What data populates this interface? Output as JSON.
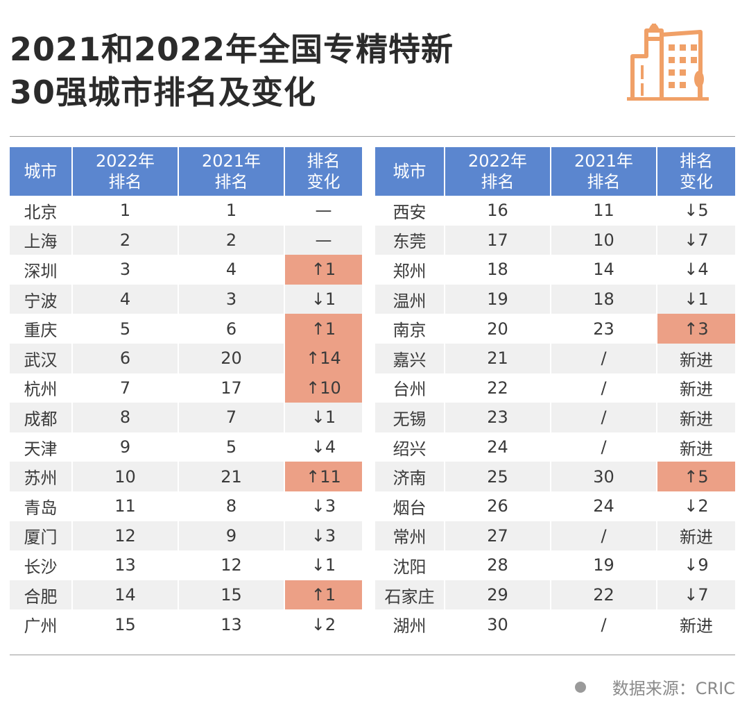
{
  "title": {
    "line1": "2021和2022年全国专精特新",
    "line2": "30强城市排名及变化"
  },
  "source": "数据来源：CRIC",
  "colors": {
    "header_bg": "#5b86cf",
    "highlight": "#eca086",
    "stripe": "#f0f0f0",
    "icon": "#f0a067"
  },
  "icon": "city-buildings-icon",
  "chart_data": {
    "type": "table",
    "columns": [
      "城市",
      "2022年排名",
      "2021年排名",
      "排名变化"
    ],
    "header_lines": {
      "city": "城市",
      "y2022": [
        "2022年",
        "排名"
      ],
      "y2021": [
        "2021年",
        "排名"
      ],
      "change": [
        "排名",
        "变化"
      ]
    },
    "rows": [
      {
        "city": "北京",
        "rank_2022": "1",
        "rank_2021": "1",
        "change": "—",
        "highlight": false
      },
      {
        "city": "上海",
        "rank_2022": "2",
        "rank_2021": "2",
        "change": "—",
        "highlight": false
      },
      {
        "city": "深圳",
        "rank_2022": "3",
        "rank_2021": "4",
        "change": "↑1",
        "highlight": true
      },
      {
        "city": "宁波",
        "rank_2022": "4",
        "rank_2021": "3",
        "change": "↓1",
        "highlight": false
      },
      {
        "city": "重庆",
        "rank_2022": "5",
        "rank_2021": "6",
        "change": "↑1",
        "highlight": true
      },
      {
        "city": "武汉",
        "rank_2022": "6",
        "rank_2021": "20",
        "change": "↑14",
        "highlight": true
      },
      {
        "city": "杭州",
        "rank_2022": "7",
        "rank_2021": "17",
        "change": "↑10",
        "highlight": true
      },
      {
        "city": "成都",
        "rank_2022": "8",
        "rank_2021": "7",
        "change": "↓1",
        "highlight": false
      },
      {
        "city": "天津",
        "rank_2022": "9",
        "rank_2021": "5",
        "change": "↓4",
        "highlight": false
      },
      {
        "city": "苏州",
        "rank_2022": "10",
        "rank_2021": "21",
        "change": "↑11",
        "highlight": true
      },
      {
        "city": "青岛",
        "rank_2022": "11",
        "rank_2021": "8",
        "change": "↓3",
        "highlight": false
      },
      {
        "city": "厦门",
        "rank_2022": "12",
        "rank_2021": "9",
        "change": "↓3",
        "highlight": false
      },
      {
        "city": "长沙",
        "rank_2022": "13",
        "rank_2021": "12",
        "change": "↓1",
        "highlight": false
      },
      {
        "city": "合肥",
        "rank_2022": "14",
        "rank_2021": "15",
        "change": "↑1",
        "highlight": true
      },
      {
        "city": "广州",
        "rank_2022": "15",
        "rank_2021": "13",
        "change": "↓2",
        "highlight": false
      },
      {
        "city": "西安",
        "rank_2022": "16",
        "rank_2021": "11",
        "change": "↓5",
        "highlight": false
      },
      {
        "city": "东莞",
        "rank_2022": "17",
        "rank_2021": "10",
        "change": "↓7",
        "highlight": false
      },
      {
        "city": "郑州",
        "rank_2022": "18",
        "rank_2021": "14",
        "change": "↓4",
        "highlight": false
      },
      {
        "city": "温州",
        "rank_2022": "19",
        "rank_2021": "18",
        "change": "↓1",
        "highlight": false
      },
      {
        "city": "南京",
        "rank_2022": "20",
        "rank_2021": "23",
        "change": "↑3",
        "highlight": true
      },
      {
        "city": "嘉兴",
        "rank_2022": "21",
        "rank_2021": "/",
        "change": "新进",
        "highlight": false
      },
      {
        "city": "台州",
        "rank_2022": "22",
        "rank_2021": "/",
        "change": "新进",
        "highlight": false
      },
      {
        "city": "无锡",
        "rank_2022": "23",
        "rank_2021": "/",
        "change": "新进",
        "highlight": false
      },
      {
        "city": "绍兴",
        "rank_2022": "24",
        "rank_2021": "/",
        "change": "新进",
        "highlight": false
      },
      {
        "city": "济南",
        "rank_2022": "25",
        "rank_2021": "30",
        "change": "↑5",
        "highlight": true
      },
      {
        "city": "烟台",
        "rank_2022": "26",
        "rank_2021": "24",
        "change": "↓2",
        "highlight": false
      },
      {
        "city": "常州",
        "rank_2022": "27",
        "rank_2021": "/",
        "change": "新进",
        "highlight": false
      },
      {
        "city": "沈阳",
        "rank_2022": "28",
        "rank_2021": "19",
        "change": "↓9",
        "highlight": false
      },
      {
        "city": "石家庄",
        "rank_2022": "29",
        "rank_2021": "22",
        "change": "↓7",
        "highlight": false
      },
      {
        "city": "湖州",
        "rank_2022": "30",
        "rank_2021": "/",
        "change": "新进",
        "highlight": false
      }
    ]
  }
}
